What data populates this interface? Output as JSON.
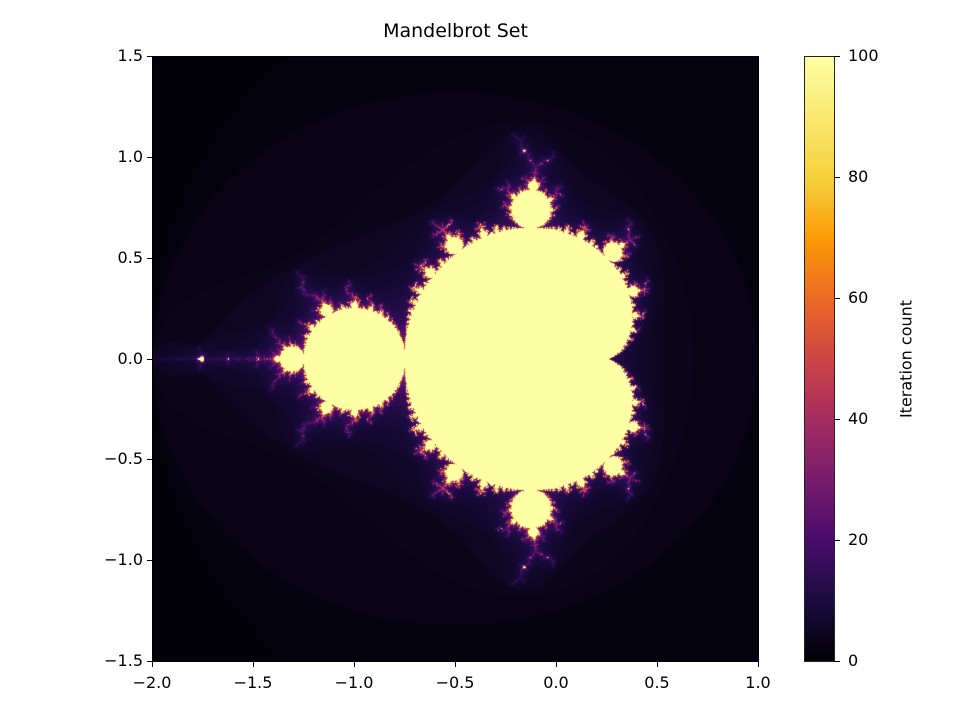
{
  "chart_data": {
    "type": "heatmap",
    "title": "Mandelbrot Set",
    "xlabel": "",
    "ylabel": "",
    "xlim": [
      -2.0,
      1.0
    ],
    "ylim": [
      -1.5,
      1.5
    ],
    "x_ticks": [
      "−2.0",
      "−1.5",
      "−1.0",
      "−0.5",
      "0.0",
      "0.5",
      "1.0"
    ],
    "x_tick_values": [
      -2.0,
      -1.5,
      -1.0,
      -0.5,
      0.0,
      0.5,
      1.0
    ],
    "y_ticks": [
      "1.5",
      "1.0",
      "0.5",
      "0.0",
      "−0.5",
      "−1.0",
      "−1.5"
    ],
    "y_tick_values": [
      1.5,
      1.0,
      0.5,
      0.0,
      -0.5,
      -1.0,
      -1.5
    ],
    "colormap": "inferno",
    "max_iterations": 100,
    "colorbar": {
      "label": "Iteration count",
      "range": [
        0,
        100
      ],
      "ticks": [
        "100",
        "80",
        "60",
        "40",
        "20",
        "0"
      ],
      "tick_values": [
        100,
        80,
        60,
        40,
        20,
        0
      ]
    },
    "grid": false,
    "legend": null
  },
  "colors": {
    "set_interior": "#fcffa4",
    "background": "#000004",
    "boundary": "#4a0c6b"
  }
}
